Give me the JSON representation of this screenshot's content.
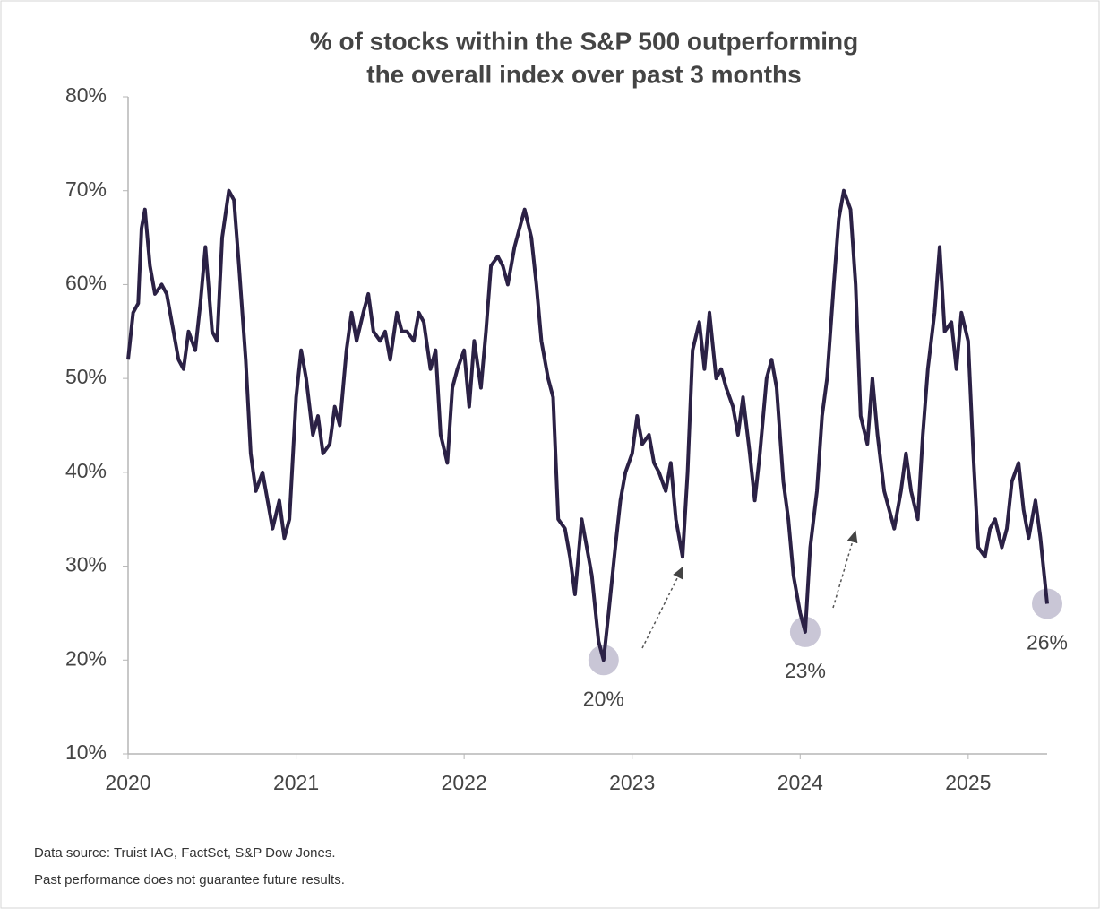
{
  "chart_data": {
    "type": "line",
    "title": [
      "% of stocks within the S&P 500 outperforming",
      "the overall index over past 3 months"
    ],
    "footnotes": [
      "Data source: Truist IAG, FactSet, S&P Dow Jones.",
      "Past performance does not guarantee future results."
    ],
    "xlim": [
      2020,
      2025.47
    ],
    "xticks": [
      2020,
      2021,
      2022,
      2023,
      2024,
      2025
    ],
    "ylim": [
      10,
      80
    ],
    "yticks": [
      {
        "value": 10,
        "label": "10%"
      },
      {
        "value": 20,
        "label": "20%"
      },
      {
        "value": 30,
        "label": "30%"
      },
      {
        "value": 40,
        "label": "40%"
      },
      {
        "value": 50,
        "label": "50%"
      },
      {
        "value": 60,
        "label": "60%"
      },
      {
        "value": 70,
        "label": "70%"
      },
      {
        "value": 80,
        "label": "80%"
      }
    ],
    "grid": false,
    "x": [
      2020.0,
      2020.03,
      2020.06,
      2020.08,
      2020.1,
      2020.13,
      2020.16,
      2020.2,
      2020.23,
      2020.26,
      2020.3,
      2020.33,
      2020.36,
      2020.4,
      2020.43,
      2020.46,
      2020.5,
      2020.53,
      2020.56,
      2020.6,
      2020.63,
      2020.66,
      2020.7,
      2020.73,
      2020.76,
      2020.8,
      2020.83,
      2020.86,
      2020.9,
      2020.93,
      2020.96,
      2021.0,
      2021.03,
      2021.06,
      2021.1,
      2021.13,
      2021.16,
      2021.2,
      2021.23,
      2021.26,
      2021.3,
      2021.33,
      2021.36,
      2021.4,
      2021.43,
      2021.46,
      2021.5,
      2021.53,
      2021.56,
      2021.6,
      2021.63,
      2021.66,
      2021.7,
      2021.73,
      2021.76,
      2021.8,
      2021.83,
      2021.86,
      2021.9,
      2021.93,
      2021.96,
      2022.0,
      2022.03,
      2022.06,
      2022.1,
      2022.13,
      2022.16,
      2022.2,
      2022.23,
      2022.26,
      2022.3,
      2022.33,
      2022.36,
      2022.4,
      2022.43,
      2022.46,
      2022.5,
      2022.53,
      2022.56,
      2022.6,
      2022.63,
      2022.66,
      2022.7,
      2022.73,
      2022.76,
      2022.8,
      2022.83,
      2022.86,
      2022.9,
      2022.93,
      2022.96,
      2023.0,
      2023.03,
      2023.06,
      2023.1,
      2023.13,
      2023.16,
      2023.2,
      2023.23,
      2023.26,
      2023.3,
      2023.33,
      2023.36,
      2023.4,
      2023.43,
      2023.46,
      2023.5,
      2023.53,
      2023.56,
      2023.6,
      2023.63,
      2023.66,
      2023.7,
      2023.73,
      2023.76,
      2023.8,
      2023.83,
      2023.86,
      2023.9,
      2023.93,
      2023.96,
      2024.0,
      2024.03,
      2024.06,
      2024.1,
      2024.13,
      2024.16,
      2024.2,
      2024.23,
      2024.26,
      2024.3,
      2024.33,
      2024.36,
      2024.4,
      2024.43,
      2024.46,
      2024.5,
      2024.53,
      2024.56,
      2024.6,
      2024.63,
      2024.66,
      2024.7,
      2024.73,
      2024.76,
      2024.8,
      2024.83,
      2024.86,
      2024.9,
      2024.93,
      2024.96,
      2025.0,
      2025.03,
      2025.06,
      2025.1,
      2025.13,
      2025.16,
      2025.2,
      2025.23,
      2025.26,
      2025.3,
      2025.33,
      2025.36,
      2025.4,
      2025.43,
      2025.47
    ],
    "series": [
      {
        "color": "#2b2145",
        "values": [
          52,
          57,
          58,
          66,
          68,
          62,
          59,
          60,
          59,
          56,
          52,
          51,
          55,
          53,
          58,
          64,
          55,
          54,
          65,
          70,
          69,
          62,
          52,
          42,
          38,
          40,
          37,
          34,
          37,
          33,
          35,
          48,
          53,
          50,
          44,
          46,
          42,
          43,
          47,
          45,
          53,
          57,
          54,
          57,
          59,
          55,
          54,
          55,
          52,
          57,
          55,
          55,
          54,
          57,
          56,
          51,
          53,
          44,
          41,
          49,
          51,
          53,
          47,
          54,
          49,
          55,
          62,
          63,
          62,
          60,
          64,
          66,
          68,
          65,
          60,
          54,
          50,
          48,
          35,
          34,
          31,
          27,
          35,
          32,
          29,
          22,
          20,
          25,
          32,
          37,
          40,
          42,
          46,
          43,
          44,
          41,
          40,
          38,
          41,
          35,
          31,
          40,
          53,
          56,
          51,
          57,
          50,
          51,
          49,
          47,
          44,
          48,
          42,
          37,
          42,
          50,
          52,
          49,
          39,
          35,
          29,
          25,
          23,
          32,
          38,
          46,
          50,
          60,
          67,
          70,
          68,
          60,
          46,
          43,
          50,
          44,
          38,
          36,
          34,
          38,
          42,
          38,
          35,
          44,
          51,
          57,
          64,
          55,
          56,
          51,
          57,
          54,
          42,
          32,
          31,
          34,
          35,
          32,
          34,
          39,
          41,
          36,
          33,
          37,
          33,
          26
        ]
      }
    ],
    "annotations": [
      {
        "x": 2022.83,
        "y": 20,
        "label": "20%"
      },
      {
        "x": 2024.03,
        "y": 23,
        "label": "23%"
      },
      {
        "x": 2025.47,
        "y": 26,
        "label": "26%"
      }
    ]
  }
}
